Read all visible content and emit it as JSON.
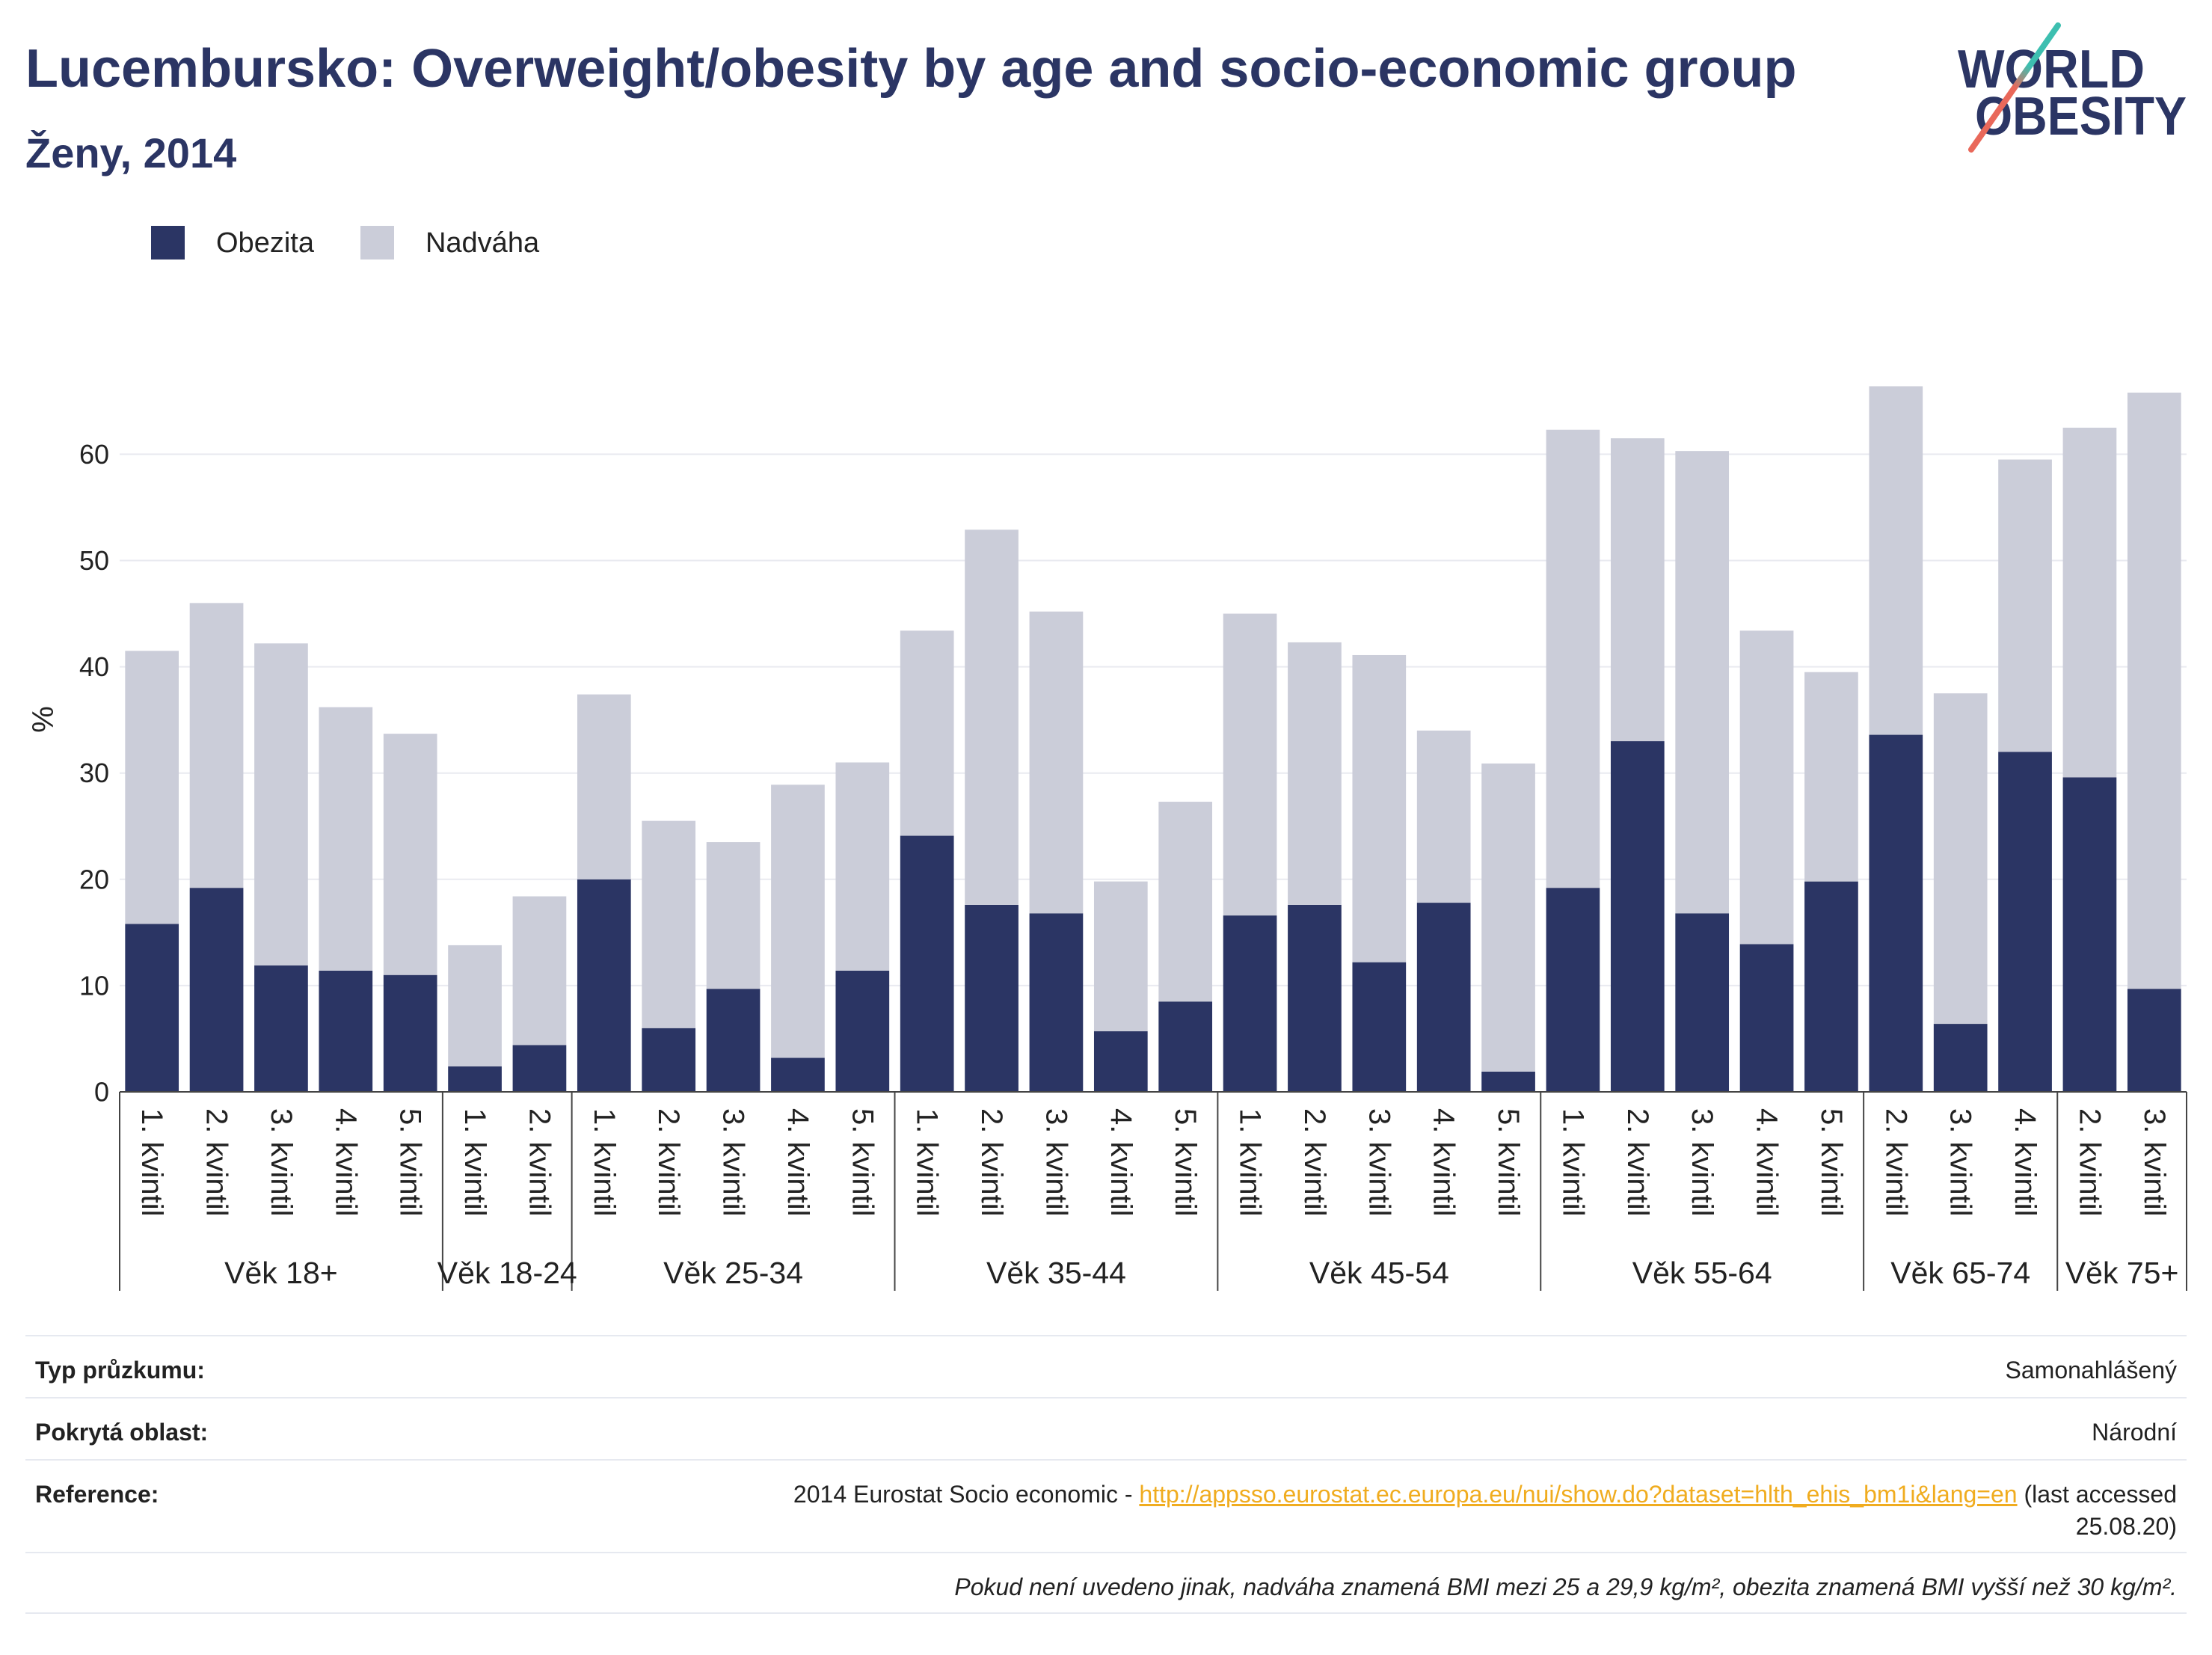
{
  "logo": {
    "line1": "WORLD",
    "line2": "OBESITY",
    "text_color": "#2b3564",
    "accent_top": "#3dbfb0",
    "accent_bottom": "#e9685a"
  },
  "chart_data": {
    "type": "bar",
    "barmode": "stack",
    "title": "Lucembursko: Overweight/obesity by age and socio-economic group",
    "subtitle": "Ženy, 2014",
    "ylabel": "%",
    "ylim": [
      0,
      70
    ],
    "yticks": [
      0,
      10,
      20,
      30,
      40,
      50,
      60
    ],
    "grid": true,
    "legend_position": "top-left",
    "groups": [
      {
        "label": "Věk 18+",
        "categories": [
          "1. kvintil",
          "2. kvintil",
          "3. kvintil",
          "4. kvintil",
          "5. kvintil"
        ]
      },
      {
        "label": "Věk 18-24",
        "categories": [
          "1. kvintil",
          "2. kvintil"
        ]
      },
      {
        "label": "Věk 25-34",
        "categories": [
          "1. kvintil",
          "2. kvintil",
          "3. kvintil",
          "4. kvintil",
          "5. kvintil"
        ]
      },
      {
        "label": "Věk 35-44",
        "categories": [
          "1. kvintil",
          "2. kvintil",
          "3. kvintil",
          "4. kvintil",
          "5. kvintil"
        ]
      },
      {
        "label": "Věk 45-54",
        "categories": [
          "1. kvintil",
          "2. kvintil",
          "3. kvintil",
          "4. kvintil",
          "5. kvintil"
        ]
      },
      {
        "label": "Věk 55-64",
        "categories": [
          "1. kvintil",
          "2. kvintil",
          "3. kvintil",
          "4. kvintil",
          "5. kvintil"
        ]
      },
      {
        "label": "Věk 65-74",
        "categories": [
          "2. kvintil",
          "3. kvintil",
          "4. kvintil"
        ]
      },
      {
        "label": "Věk 75+",
        "categories": [
          "2. kvintil",
          "3. kvintil"
        ]
      }
    ],
    "series": [
      {
        "name": "Obezita",
        "color": "#2b3564",
        "values": [
          15.8,
          19.2,
          11.9,
          11.4,
          11.0,
          2.4,
          4.4,
          20.0,
          6.0,
          9.7,
          3.2,
          11.4,
          24.1,
          17.6,
          16.8,
          5.7,
          8.5,
          16.6,
          17.6,
          12.2,
          17.8,
          1.9,
          19.2,
          33.0,
          16.8,
          13.9,
          19.8,
          33.6,
          6.4,
          32.0,
          29.6,
          9.7
        ]
      },
      {
        "name": "Nadváha",
        "color": "#cbcdd9",
        "values": [
          25.7,
          26.8,
          30.3,
          24.8,
          22.7,
          11.4,
          14.0,
          17.4,
          19.5,
          13.8,
          25.7,
          19.6,
          19.3,
          35.3,
          28.4,
          14.1,
          18.8,
          28.4,
          24.7,
          28.9,
          16.2,
          29.0,
          43.1,
          28.5,
          43.5,
          29.5,
          19.7,
          32.8,
          31.1,
          27.5,
          32.9,
          56.1
        ]
      }
    ]
  },
  "info_table": {
    "survey_type": {
      "label": "Typ průzkumu:",
      "value": "Samonahlášený"
    },
    "coverage": {
      "label": "Pokrytá oblast:",
      "value": "Národní"
    },
    "reference": {
      "label": "Reference:",
      "prefix": "2014 Eurostat Socio economic - ",
      "link": "http://appsso.eurostat.ec.europa.eu/nui/show.do?dataset=hlth_ehis_bm1i&lang=en",
      "suffix": " (last accessed 25.08.20)"
    },
    "note": "Pokud není uvedeno jinak, nadváha znamená BMI mezi 25 a 29,9 kg/m², obezita znamená BMI vyšší než 30 kg/m²."
  }
}
